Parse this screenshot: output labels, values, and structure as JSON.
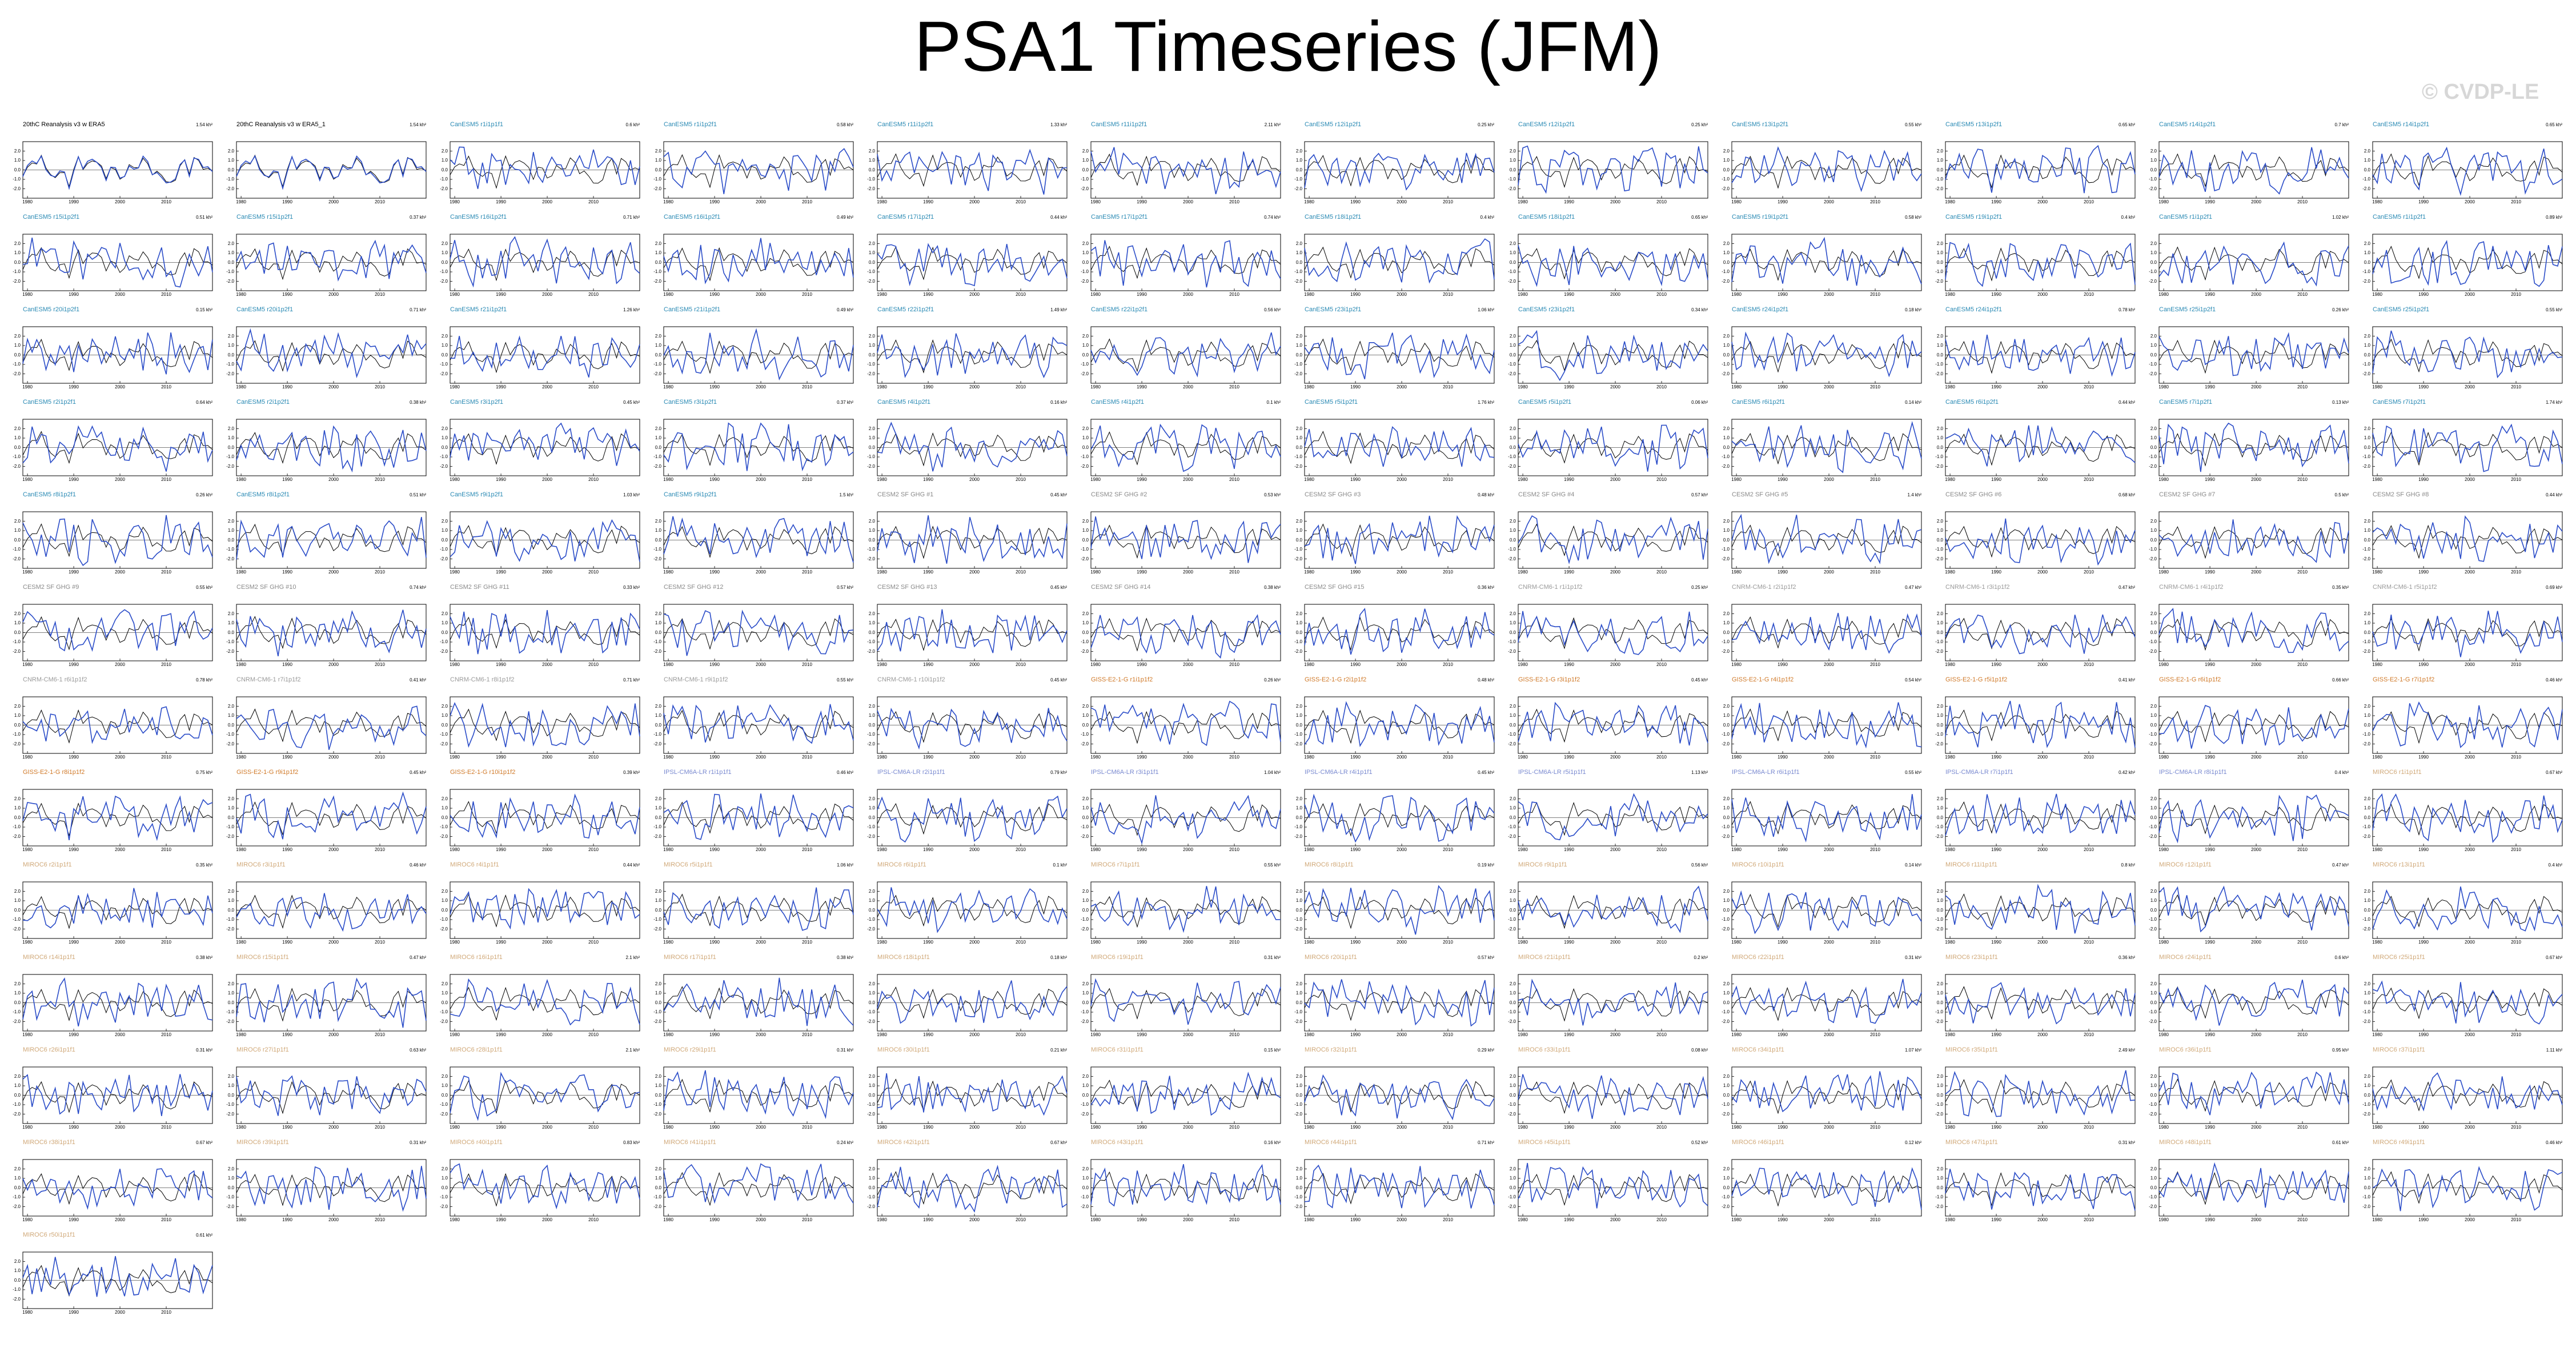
{
  "header": {
    "title": "PSA1 Timeseries (JFM)",
    "watermark": "© CVDP-LE"
  },
  "colors": {
    "reference_line": "#000000",
    "model_line": "#2a4cc8",
    "title_obs": "#000000",
    "title_cesm2": "#2a8ab4",
    "title_cesm2_sf": "#8a8a8a",
    "title_cnrm": "#9a9a9a",
    "title_giss": "#d07a2a",
    "title_ipsl": "#7a8ad0",
    "title_miroc": "#d0a878"
  },
  "chart_data": {
    "type": "line",
    "layout": "small-multiples grid, 12 columns, 13 rows; last row holds 2 panels in columns 6-7",
    "shared_axes": {
      "x_ticks": [
        1980,
        1990,
        2000,
        2010
      ],
      "y_ticks": [
        2.0,
        1.0,
        0.0,
        -1.0,
        -2.0
      ],
      "ylim": [
        -3,
        3
      ],
      "xlim": [
        1979,
        2020
      ]
    },
    "series_legend": {
      "reference": "black thin line (observations)",
      "model": "blue line (ensemble member)"
    },
    "panels": [
      {
        "title": "20thC Reanalysis v3 w ERA5",
        "variance": "1.54 kh²",
        "family": "obs"
      },
      {
        "title": "20thC Reanalysis v3 w ERA5_1",
        "variance": "1.54 kh²",
        "family": "obs"
      },
      {
        "title": "CanESM5 r1i1p1f1",
        "variance": "0.6 kh²",
        "family": "cesm2"
      },
      {
        "title": "CanESM5 r1i1p2f1",
        "variance": "0.58 kh²",
        "family": "cesm2"
      },
      {
        "title": "CanESM5 r11i1p2f1",
        "variance": "1.33 kh²",
        "family": "cesm2"
      },
      {
        "title": "CanESM5 r11i1p2f1",
        "variance": "2.11 kh²",
        "family": "cesm2"
      },
      {
        "title": "CanESM5 r12i1p2f1",
        "variance": "0.25 kh²",
        "family": "cesm2"
      },
      {
        "title": "CanESM5 r12i1p2f1",
        "variance": "0.25 kh²",
        "family": "cesm2"
      },
      {
        "title": "CanESM5 r13i1p2f1",
        "variance": "0.55 kh²",
        "family": "cesm2"
      },
      {
        "title": "CanESM5 r13i1p2f1",
        "variance": "0.65 kh²",
        "family": "cesm2"
      },
      {
        "title": "CanESM5 r14i1p2f1",
        "variance": "0.7 kh²",
        "family": "cesm2"
      },
      {
        "title": "CanESM5 r14i1p2f1",
        "variance": "0.65 kh²",
        "family": "cesm2"
      },
      {
        "title": "CanESM5 r15i1p2f1",
        "variance": "0.51 kh²",
        "family": "cesm2"
      },
      {
        "title": "CanESM5 r15i1p2f1",
        "variance": "0.37 kh²",
        "family": "cesm2"
      },
      {
        "title": "CanESM5 r16i1p2f1",
        "variance": "0.71 kh²",
        "family": "cesm2"
      },
      {
        "title": "CanESM5 r16i1p2f1",
        "variance": "0.49 kh²",
        "family": "cesm2"
      },
      {
        "title": "CanESM5 r17i1p2f1",
        "variance": "0.44 kh²",
        "family": "cesm2"
      },
      {
        "title": "CanESM5 r17i1p2f1",
        "variance": "0.74 kh²",
        "family": "cesm2"
      },
      {
        "title": "CanESM5 r18i1p2f1",
        "variance": "0.4 kh²",
        "family": "cesm2"
      },
      {
        "title": "CanESM5 r18i1p2f1",
        "variance": "0.65 kh²",
        "family": "cesm2"
      },
      {
        "title": "CanESM5 r19i1p2f1",
        "variance": "0.58 kh²",
        "family": "cesm2"
      },
      {
        "title": "CanESM5 r19i1p2f1",
        "variance": "0.4 kh²",
        "family": "cesm2"
      },
      {
        "title": "CanESM5 r1i1p2f1",
        "variance": "1.02 kh²",
        "family": "cesm2"
      },
      {
        "title": "CanESM5 r1i1p2f1",
        "variance": "0.89 kh²",
        "family": "cesm2"
      },
      {
        "title": "CanESM5 r20i1p2f1",
        "variance": "0.15 kh²",
        "family": "cesm2"
      },
      {
        "title": "CanESM5 r20i1p2f1",
        "variance": "0.71 kh²",
        "family": "cesm2"
      },
      {
        "title": "CanESM5 r21i1p2f1",
        "variance": "1.26 kh²",
        "family": "cesm2"
      },
      {
        "title": "CanESM5 r21i1p2f1",
        "variance": "0.49 kh²",
        "family": "cesm2"
      },
      {
        "title": "CanESM5 r22i1p2f1",
        "variance": "1.49 kh²",
        "family": "cesm2"
      },
      {
        "title": "CanESM5 r22i1p2f1",
        "variance": "0.56 kh²",
        "family": "cesm2"
      },
      {
        "title": "CanESM5 r23i1p2f1",
        "variance": "1.06 kh²",
        "family": "cesm2"
      },
      {
        "title": "CanESM5 r23i1p2f1",
        "variance": "0.34 kh²",
        "family": "cesm2"
      },
      {
        "title": "CanESM5 r24i1p2f1",
        "variance": "0.18 kh²",
        "family": "cesm2"
      },
      {
        "title": "CanESM5 r24i1p2f1",
        "variance": "0.78 kh²",
        "family": "cesm2"
      },
      {
        "title": "CanESM5 r25i1p2f1",
        "variance": "0.26 kh²",
        "family": "cesm2"
      },
      {
        "title": "CanESM5 r25i1p2f1",
        "variance": "0.55 kh²",
        "family": "cesm2"
      },
      {
        "title": "CanESM5 r2i1p2f1",
        "variance": "0.64 kh²",
        "family": "cesm2"
      },
      {
        "title": "CanESM5 r2i1p2f1",
        "variance": "0.38 kh²",
        "family": "cesm2"
      },
      {
        "title": "CanESM5 r3i1p2f1",
        "variance": "0.45 kh²",
        "family": "cesm2"
      },
      {
        "title": "CanESM5 r3i1p2f1",
        "variance": "0.37 kh²",
        "family": "cesm2"
      },
      {
        "title": "CanESM5 r4i1p2f1",
        "variance": "0.16 kh²",
        "family": "cesm2"
      },
      {
        "title": "CanESM5 r4i1p2f1",
        "variance": "0.1 kh²",
        "family": "cesm2"
      },
      {
        "title": "CanESM5 r5i1p2f1",
        "variance": "1.76 kh²",
        "family": "cesm2"
      },
      {
        "title": "CanESM5 r5i1p2f1",
        "variance": "0.06 kh²",
        "family": "cesm2"
      },
      {
        "title": "CanESM5 r6i1p2f1",
        "variance": "0.14 kh²",
        "family": "cesm2"
      },
      {
        "title": "CanESM5 r6i1p2f1",
        "variance": "0.44 kh²",
        "family": "cesm2"
      },
      {
        "title": "CanESM5 r7i1p2f1",
        "variance": "0.13 kh²",
        "family": "cesm2"
      },
      {
        "title": "CanESM5 r7i1p2f1",
        "variance": "1.74 kh²",
        "family": "cesm2"
      },
      {
        "title": "CanESM5 r8i1p2f1",
        "variance": "0.26 kh²",
        "family": "cesm2"
      },
      {
        "title": "CanESM5 r8i1p2f1",
        "variance": "0.51 kh²",
        "family": "cesm2"
      },
      {
        "title": "CanESM5 r9i1p2f1",
        "variance": "1.03 kh²",
        "family": "cesm2"
      },
      {
        "title": "CanESM5 r9i1p2f1",
        "variance": "1.5 kh²",
        "family": "cesm2"
      },
      {
        "title": "CESM2 SF GHG #1",
        "variance": "0.45 kh²",
        "family": "cesm2_sf"
      },
      {
        "title": "CESM2 SF GHG #2",
        "variance": "0.53 kh²",
        "family": "cesm2_sf"
      },
      {
        "title": "CESM2 SF GHG #3",
        "variance": "0.48 kh²",
        "family": "cesm2_sf"
      },
      {
        "title": "CESM2 SF GHG #4",
        "variance": "0.57 kh²",
        "family": "cesm2_sf"
      },
      {
        "title": "CESM2 SF GHG #5",
        "variance": "1.4 kh²",
        "family": "cesm2_sf"
      },
      {
        "title": "CESM2 SF GHG #6",
        "variance": "0.68 kh²",
        "family": "cesm2_sf"
      },
      {
        "title": "CESM2 SF GHG #7",
        "variance": "0.5 kh²",
        "family": "cesm2_sf"
      },
      {
        "title": "CESM2 SF GHG #8",
        "variance": "0.44 kh²",
        "family": "cesm2_sf"
      },
      {
        "title": "CESM2 SF GHG #9",
        "variance": "0.55 kh²",
        "family": "cesm2_sf"
      },
      {
        "title": "CESM2 SF GHG #10",
        "variance": "0.74 kh²",
        "family": "cesm2_sf"
      },
      {
        "title": "CESM2 SF GHG #11",
        "variance": "0.33 kh²",
        "family": "cesm2_sf"
      },
      {
        "title": "CESM2 SF GHG #12",
        "variance": "0.57 kh²",
        "family": "cesm2_sf"
      },
      {
        "title": "CESM2 SF GHG #13",
        "variance": "0.45 kh²",
        "family": "cesm2_sf"
      },
      {
        "title": "CESM2 SF GHG #14",
        "variance": "0.38 kh²",
        "family": "cesm2_sf"
      },
      {
        "title": "CESM2 SF GHG #15",
        "variance": "0.36 kh²",
        "family": "cesm2_sf"
      },
      {
        "title": "CNRM-CM6-1 r1i1p1f2",
        "variance": "0.25 kh²",
        "family": "cnrm"
      },
      {
        "title": "CNRM-CM6-1 r2i1p1f2",
        "variance": "0.47 kh²",
        "family": "cnrm"
      },
      {
        "title": "CNRM-CM6-1 r3i1p1f2",
        "variance": "0.47 kh²",
        "family": "cnrm"
      },
      {
        "title": "CNRM-CM6-1 r4i1p1f2",
        "variance": "0.35 kh²",
        "family": "cnrm"
      },
      {
        "title": "CNRM-CM6-1 r5i1p1f2",
        "variance": "0.69 kh²",
        "family": "cnrm"
      },
      {
        "title": "CNRM-CM6-1 r6i1p1f2",
        "variance": "0.78 kh²",
        "family": "cnrm"
      },
      {
        "title": "CNRM-CM6-1 r7i1p1f2",
        "variance": "0.41 kh²",
        "family": "cnrm"
      },
      {
        "title": "CNRM-CM6-1 r8i1p1f2",
        "variance": "0.71 kh²",
        "family": "cnrm"
      },
      {
        "title": "CNRM-CM6-1 r9i1p1f2",
        "variance": "0.55 kh²",
        "family": "cnrm"
      },
      {
        "title": "CNRM-CM6-1 r10i1p1f2",
        "variance": "0.45 kh²",
        "family": "cnrm"
      },
      {
        "title": "GISS-E2-1-G r1i1p1f2",
        "variance": "0.26 kh²",
        "family": "giss"
      },
      {
        "title": "GISS-E2-1-G r2i1p1f2",
        "variance": "0.48 kh²",
        "family": "giss"
      },
      {
        "title": "GISS-E2-1-G r3i1p1f2",
        "variance": "0.45 kh²",
        "family": "giss"
      },
      {
        "title": "GISS-E2-1-G r4i1p1f2",
        "variance": "0.54 kh²",
        "family": "giss"
      },
      {
        "title": "GISS-E2-1-G r5i1p1f2",
        "variance": "0.41 kh²",
        "family": "giss"
      },
      {
        "title": "GISS-E2-1-G r6i1p1f2",
        "variance": "0.66 kh²",
        "family": "giss"
      },
      {
        "title": "GISS-E2-1-G r7i1p1f2",
        "variance": "0.46 kh²",
        "family": "giss"
      },
      {
        "title": "GISS-E2-1-G r8i1p1f2",
        "variance": "0.75 kh²",
        "family": "giss"
      },
      {
        "title": "GISS-E2-1-G r9i1p1f2",
        "variance": "0.45 kh²",
        "family": "giss"
      },
      {
        "title": "GISS-E2-1-G r10i1p1f2",
        "variance": "0.39 kh²",
        "family": "giss"
      },
      {
        "title": "IPSL-CM6A-LR r1i1p1f1",
        "variance": "0.46 kh²",
        "family": "ipsl"
      },
      {
        "title": "IPSL-CM6A-LR r2i1p1f1",
        "variance": "0.79 kh²",
        "family": "ipsl"
      },
      {
        "title": "IPSL-CM6A-LR r3i1p1f1",
        "variance": "1.04 kh²",
        "family": "ipsl"
      },
      {
        "title": "IPSL-CM6A-LR r4i1p1f1",
        "variance": "0.45 kh²",
        "family": "ipsl"
      },
      {
        "title": "IPSL-CM6A-LR r5i1p1f1",
        "variance": "1.13 kh²",
        "family": "ipsl"
      },
      {
        "title": "IPSL-CM6A-LR r6i1p1f1",
        "variance": "0.55 kh²",
        "family": "ipsl"
      },
      {
        "title": "IPSL-CM6A-LR r7i1p1f1",
        "variance": "0.42 kh²",
        "family": "ipsl"
      },
      {
        "title": "IPSL-CM6A-LR r8i1p1f1",
        "variance": "0.4 kh²",
        "family": "ipsl"
      },
      {
        "title": "MIROC6 r1i1p1f1",
        "variance": "0.67 kh²",
        "family": "miroc"
      },
      {
        "title": "MIROC6 r2i1p1f1",
        "variance": "0.35 kh²",
        "family": "miroc"
      },
      {
        "title": "MIROC6 r3i1p1f1",
        "variance": "0.46 kh²",
        "family": "miroc"
      },
      {
        "title": "MIROC6 r4i1p1f1",
        "variance": "0.44 kh²",
        "family": "miroc"
      },
      {
        "title": "MIROC6 r5i1p1f1",
        "variance": "1.06 kh²",
        "family": "miroc"
      },
      {
        "title": "MIROC6 r6i1p1f1",
        "variance": "0.1 kh²",
        "family": "miroc"
      },
      {
        "title": "MIROC6 r7i1p1f1",
        "variance": "0.55 kh²",
        "family": "miroc"
      },
      {
        "title": "MIROC6 r8i1p1f1",
        "variance": "0.19 kh²",
        "family": "miroc"
      },
      {
        "title": "MIROC6 r9i1p1f1",
        "variance": "0.56 kh²",
        "family": "miroc"
      },
      {
        "title": "MIROC6 r10i1p1f1",
        "variance": "0.14 kh²",
        "family": "miroc"
      },
      {
        "title": "MIROC6 r11i1p1f1",
        "variance": "0.8 kh²",
        "family": "miroc"
      },
      {
        "title": "MIROC6 r12i1p1f1",
        "variance": "0.47 kh²",
        "family": "miroc"
      },
      {
        "title": "MIROC6 r13i1p1f1",
        "variance": "0.4 kh²",
        "family": "miroc"
      },
      {
        "title": "MIROC6 r14i1p1f1",
        "variance": "0.38 kh²",
        "family": "miroc"
      },
      {
        "title": "MIROC6 r15i1p1f1",
        "variance": "0.47 kh²",
        "family": "miroc"
      },
      {
        "title": "MIROC6 r16i1p1f1",
        "variance": "2.1 kh²",
        "family": "miroc"
      },
      {
        "title": "MIROC6 r17i1p1f1",
        "variance": "0.38 kh²",
        "family": "miroc"
      },
      {
        "title": "MIROC6 r18i1p1f1",
        "variance": "0.18 kh²",
        "family": "miroc"
      },
      {
        "title": "MIROC6 r19i1p1f1",
        "variance": "0.31 kh²",
        "family": "miroc"
      },
      {
        "title": "MIROC6 r20i1p1f1",
        "variance": "0.57 kh²",
        "family": "miroc"
      },
      {
        "title": "MIROC6 r21i1p1f1",
        "variance": "0.2 kh²",
        "family": "miroc"
      },
      {
        "title": "MIROC6 r22i1p1f1",
        "variance": "0.31 kh²",
        "family": "miroc"
      },
      {
        "title": "MIROC6 r23i1p1f1",
        "variance": "0.36 kh²",
        "family": "miroc"
      },
      {
        "title": "MIROC6 r24i1p1f1",
        "variance": "0.6 kh²",
        "family": "miroc"
      },
      {
        "title": "MIROC6 r25i1p1f1",
        "variance": "0.67 kh²",
        "family": "miroc"
      },
      {
        "title": "MIROC6 r26i1p1f1",
        "variance": "0.31 kh²",
        "family": "miroc"
      },
      {
        "title": "MIROC6 r27i1p1f1",
        "variance": "0.63 kh²",
        "family": "miroc"
      },
      {
        "title": "MIROC6 r28i1p1f1",
        "variance": "2.1 kh²",
        "family": "miroc"
      },
      {
        "title": "MIROC6 r29i1p1f1",
        "variance": "0.31 kh²",
        "family": "miroc"
      },
      {
        "title": "MIROC6 r30i1p1f1",
        "variance": "0.21 kh²",
        "family": "miroc"
      },
      {
        "title": "MIROC6 r31i1p1f1",
        "variance": "0.15 kh²",
        "family": "miroc"
      },
      {
        "title": "MIROC6 r32i1p1f1",
        "variance": "0.29 kh²",
        "family": "miroc"
      },
      {
        "title": "MIROC6 r33i1p1f1",
        "variance": "0.08 kh²",
        "family": "miroc"
      },
      {
        "title": "MIROC6 r34i1p1f1",
        "variance": "1.07 kh²",
        "family": "miroc"
      },
      {
        "title": "MIROC6 r35i1p1f1",
        "variance": "2.49 kh²",
        "family": "miroc"
      },
      {
        "title": "MIROC6 r36i1p1f1",
        "variance": "0.95 kh²",
        "family": "miroc"
      },
      {
        "title": "MIROC6 r37i1p1f1",
        "variance": "1.11 kh²",
        "family": "miroc"
      },
      {
        "title": "MIROC6 r38i1p1f1",
        "variance": "0.67 kh²",
        "family": "miroc"
      },
      {
        "title": "MIROC6 r39i1p1f1",
        "variance": "0.31 kh²",
        "family": "miroc"
      },
      {
        "title": "MIROC6 r40i1p1f1",
        "variance": "0.83 kh²",
        "family": "miroc"
      },
      {
        "title": "MIROC6 r41i1p1f1",
        "variance": "0.24 kh²",
        "family": "miroc"
      },
      {
        "title": "MIROC6 r42i1p1f1",
        "variance": "0.67 kh²",
        "family": "miroc"
      },
      {
        "title": "MIROC6 r43i1p1f1",
        "variance": "0.16 kh²",
        "family": "miroc"
      },
      {
        "title": "MIROC6 r44i1p1f1",
        "variance": "0.71 kh²",
        "family": "miroc"
      },
      {
        "title": "MIROC6 r45i1p1f1",
        "variance": "0.52 kh²",
        "family": "miroc"
      },
      {
        "title": "MIROC6 r46i1p1f1",
        "variance": "0.12 kh²",
        "family": "miroc"
      },
      {
        "title": "MIROC6 r47i1p1f1",
        "variance": "0.31 kh²",
        "family": "miroc"
      },
      {
        "title": "MIROC6 r48i1p1f1",
        "variance": "0.61 kh²",
        "family": "miroc"
      },
      {
        "title": "MIROC6 r49i1p1f1",
        "variance": "0.46 kh²",
        "family": "miroc"
      },
      {
        "title": "MIROC6 r50i1p1f1",
        "variance": "0.61 kh²",
        "family": "miroc"
      }
    ]
  }
}
